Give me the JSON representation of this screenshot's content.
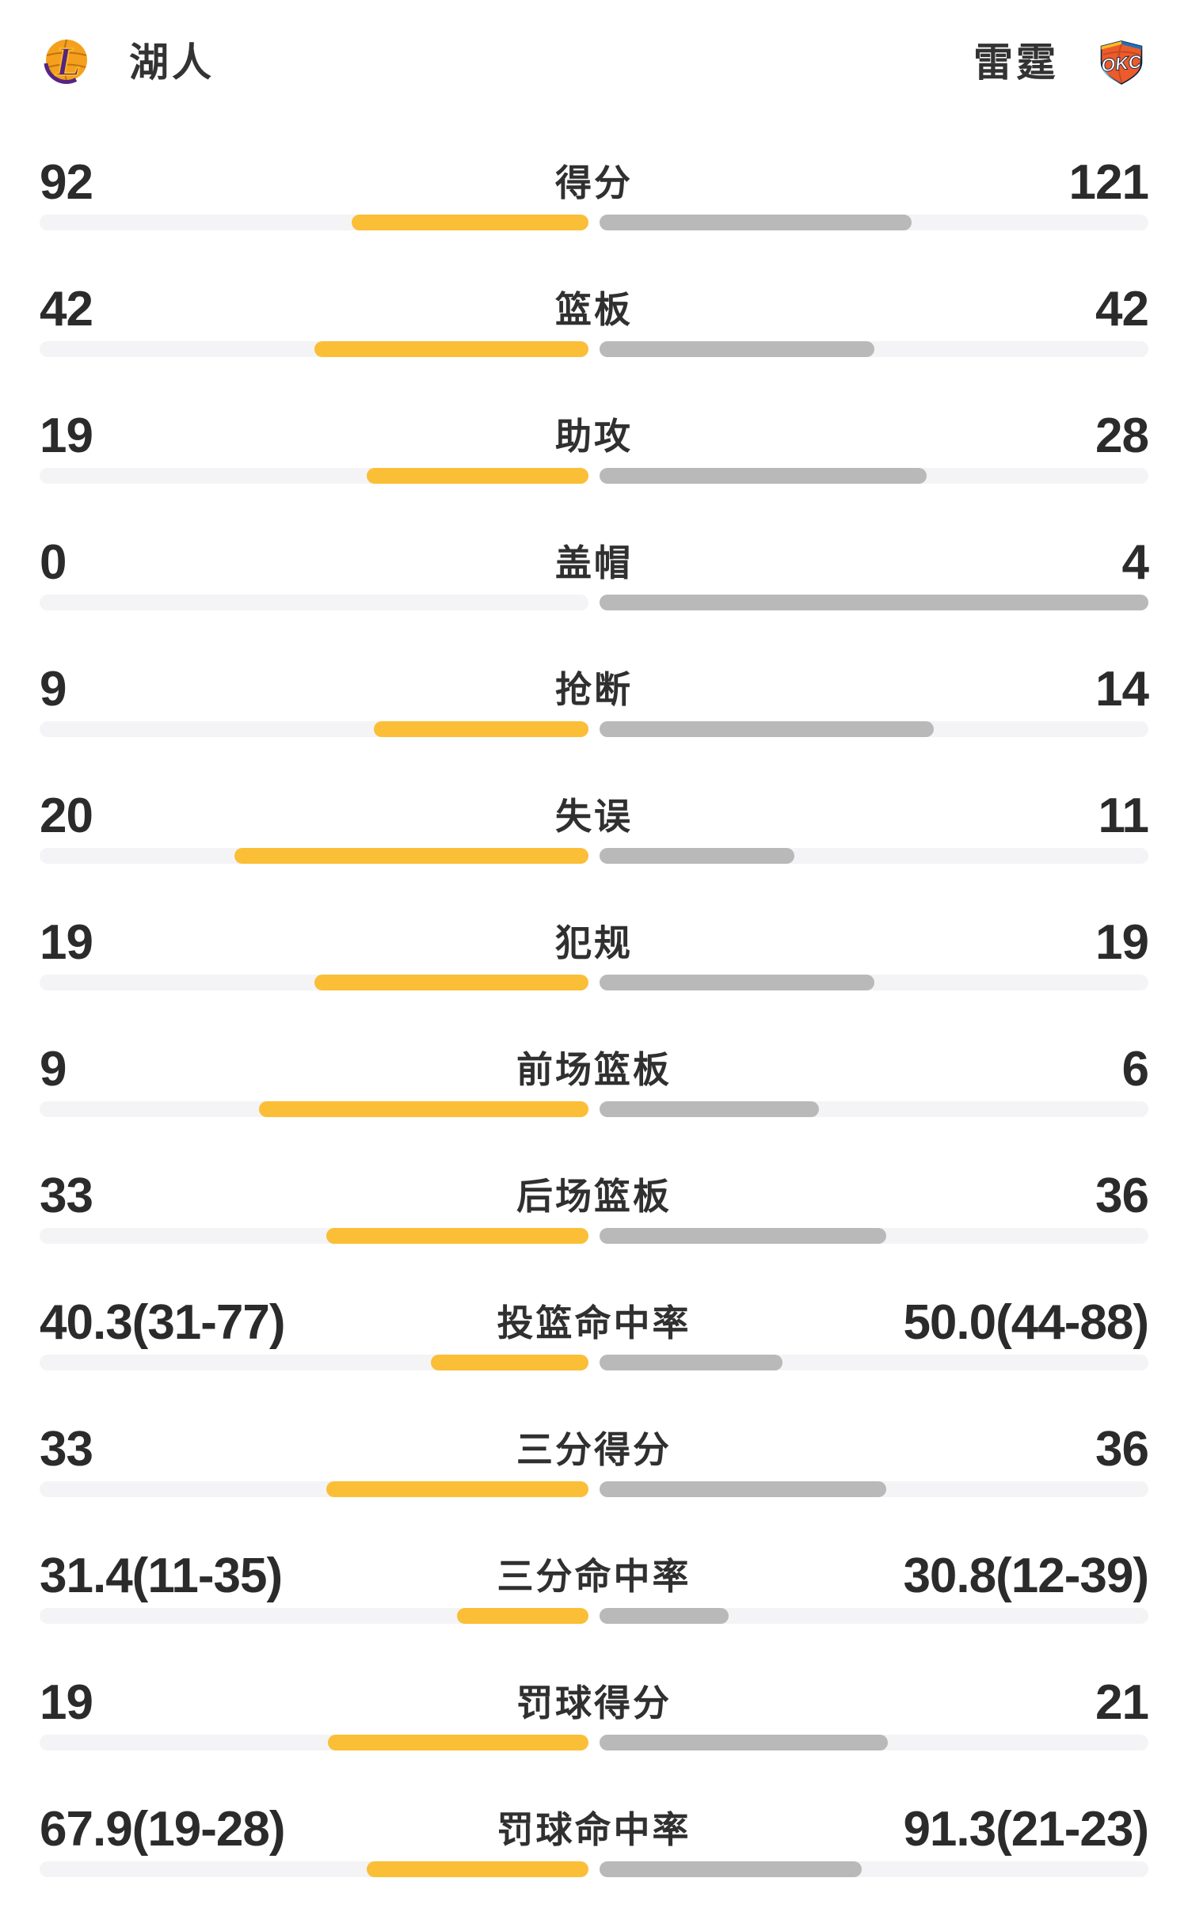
{
  "header": {
    "home": {
      "name": "湖人",
      "logo": "lakers-logo",
      "logo_text": "L"
    },
    "away": {
      "name": "雷霆",
      "logo": "okc-logo",
      "logo_text": "OKC"
    }
  },
  "colors": {
    "home_bar": "#FBBE37",
    "away_bar": "#B9B9B9",
    "bar_track": "#F4F4F6",
    "value_text": "#2B2B2B",
    "label_text": "#303030"
  },
  "stats": {
    "rows": [
      {
        "label": "得分",
        "home": "92",
        "away": "121",
        "home_fill_pct": 43.2,
        "away_fill_pct": 56.8
      },
      {
        "label": "篮板",
        "home": "42",
        "away": "42",
        "home_fill_pct": 50,
        "away_fill_pct": 50
      },
      {
        "label": "助攻",
        "home": "19",
        "away": "28",
        "home_fill_pct": 40.4,
        "away_fill_pct": 59.6
      },
      {
        "label": "盖帽",
        "home": "0",
        "away": "4",
        "home_fill_pct": 0,
        "away_fill_pct": 100
      },
      {
        "label": "抢断",
        "home": "9",
        "away": "14",
        "home_fill_pct": 39.1,
        "away_fill_pct": 60.9
      },
      {
        "label": "失误",
        "home": "20",
        "away": "11",
        "home_fill_pct": 64.5,
        "away_fill_pct": 35.5
      },
      {
        "label": "犯规",
        "home": "19",
        "away": "19",
        "home_fill_pct": 50,
        "away_fill_pct": 50
      },
      {
        "label": "前场篮板",
        "home": "9",
        "away": "6",
        "home_fill_pct": 60,
        "away_fill_pct": 40
      },
      {
        "label": "后场篮板",
        "home": "33",
        "away": "36",
        "home_fill_pct": 47.8,
        "away_fill_pct": 52.2
      },
      {
        "label": "投篮命中率",
        "home": "40.3(31-77)",
        "away": "50.0(44-88)",
        "home_fill_pct": 28.7,
        "away_fill_pct": 33.3
      },
      {
        "label": "三分得分",
        "home": "33",
        "away": "36",
        "home_fill_pct": 47.8,
        "away_fill_pct": 52.2
      },
      {
        "label": "三分命中率",
        "home": "31.4(11-35)",
        "away": "30.8(12-39)",
        "home_fill_pct": 23.9,
        "away_fill_pct": 23.5
      },
      {
        "label": "罚球得分",
        "home": "19",
        "away": "21",
        "home_fill_pct": 47.5,
        "away_fill_pct": 52.5
      },
      {
        "label": "罚球命中率",
        "home": "67.9(19-28)",
        "away": "91.3(21-23)",
        "home_fill_pct": 40.4,
        "away_fill_pct": 47.7
      }
    ]
  }
}
